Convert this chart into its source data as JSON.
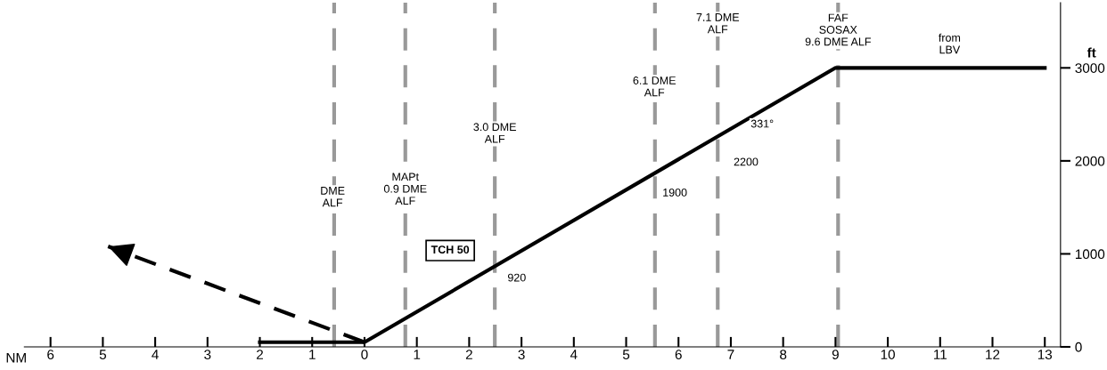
{
  "chart_data": {
    "type": "line",
    "xlabel": "NM",
    "ylabel": "ft",
    "xlim": [
      -6.5,
      13.3
    ],
    "ylim": [
      0,
      3700
    ],
    "xticks": [
      {
        "value": -6,
        "label": "6"
      },
      {
        "value": -5,
        "label": "5"
      },
      {
        "value": -4,
        "label": "4"
      },
      {
        "value": -3,
        "label": "3"
      },
      {
        "value": -2,
        "label": "2"
      },
      {
        "value": -1,
        "label": "1"
      },
      0,
      1,
      2,
      3,
      4,
      5,
      6,
      7,
      8,
      9,
      10,
      11,
      12,
      13
    ],
    "yticks": [
      0,
      1000,
      2000,
      3000
    ],
    "series": [
      {
        "x": [
          -2,
          0,
          9,
          13
        ],
        "values": [
          50,
          50,
          3000,
          3000
        ],
        "color": "#000000",
        "line_style": "solid"
      },
      {
        "x": [
          0,
          -4.9
        ],
        "values": [
          50,
          1080
        ],
        "color": "#000000",
        "line_style": "dashed"
      }
    ],
    "ref_lines": [
      {
        "axis": "x",
        "value": -0.58,
        "color": "#999999",
        "line_style": "dashed"
      },
      {
        "axis": "x",
        "value": 0.78,
        "color": "#999999",
        "line_style": "dashed"
      },
      {
        "axis": "x",
        "value": 2.49,
        "color": "#999999",
        "line_style": "dashed"
      },
      {
        "axis": "x",
        "value": 5.55,
        "color": "#999999",
        "line_style": "dashed"
      },
      {
        "axis": "x",
        "value": 6.75,
        "color": "#999999",
        "line_style": "dashed"
      },
      {
        "axis": "x",
        "value": 9.05,
        "color": "#999999",
        "line_style": "dashed"
      }
    ],
    "annotations": [
      {
        "text": "DME\nALF",
        "x": -0.61,
        "y": 1605
      },
      {
        "text": "MAPt\n0.9 DME\nALF",
        "x": 0.78,
        "y": 1690
      },
      {
        "text": "3.0 DME\nALF",
        "x": 2.49,
        "y": 2290
      },
      {
        "text": "6.1 DME\nALF",
        "x": 5.54,
        "y": 2790
      },
      {
        "text": "7.1 DME\nALF",
        "x": 6.75,
        "y": 3470
      },
      {
        "text": "FAF\nSOSAX\n9.6 DME ALF",
        "x": 9.05,
        "y": 3400
      },
      {
        "text": "from\nLBV",
        "x": 11.18,
        "y": 3250
      },
      "TCH 50",
      {
        "text": "920",
        "x": 2.91,
        "y": 735
      },
      {
        "text": "1900",
        "x": 5.93,
        "y": 1650
      },
      {
        "text": "2200",
        "x": 7.29,
        "y": 1980
      },
      {
        "text": "331°",
        "x": 7.6,
        "y": 2390
      }
    ]
  }
}
